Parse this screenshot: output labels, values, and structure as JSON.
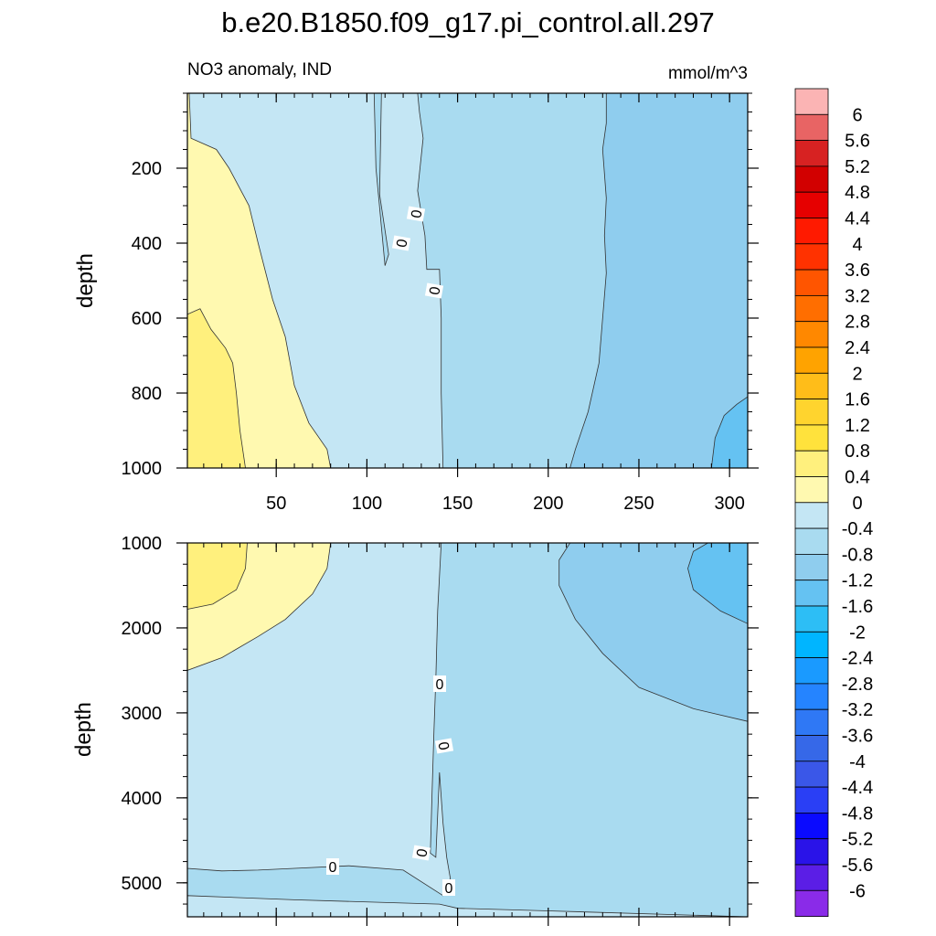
{
  "title": "b.e20.B1850.f09_g17.pi_control.all.297",
  "colors": {
    "contour_line": "#333333",
    "frame": "#000000"
  },
  "chart_data": [
    {
      "type": "heatmap",
      "panel": "upper",
      "subtitle_left": "NO3 anomaly, IND",
      "subtitle_right": "mmol/m^3",
      "ylabel": "depth",
      "xlabel": "",
      "xlim": [
        1,
        310
      ],
      "ylim": [
        1000,
        0
      ],
      "x_ticks": [
        50,
        100,
        150,
        200,
        250,
        300
      ],
      "y_ticks": [
        200,
        400,
        600,
        800,
        1000
      ],
      "contour_labels": [
        "0",
        "0",
        "0"
      ],
      "contour_regions": [
        {
          "level_lo": 0,
          "level_hi": 0.4,
          "description": "positive anomaly from x=1 to ~x=140 at all depths"
        },
        {
          "level_lo": 0.4,
          "level_hi": 0.8,
          "description": "left wedge, x<=80 at 1000 m narrowing to x~10 near surface"
        },
        {
          "level_lo": 0.8,
          "level_hi": 1.2,
          "description": "small patch x<=32 below ~590 m"
        },
        {
          "level_lo": -0.4,
          "level_hi": 0,
          "description": "weak negative anomaly east of x~140"
        },
        {
          "level_lo": -0.8,
          "level_hi": -0.4,
          "description": "negative band x~210-310 widening with depth"
        },
        {
          "level_lo": -1.2,
          "level_hi": -0.8,
          "description": "corner patch x>=290 below ~810 m"
        }
      ]
    },
    {
      "type": "heatmap",
      "panel": "lower",
      "ylabel": "depth",
      "xlabel": "",
      "xlim": [
        1,
        310
      ],
      "ylim": [
        5400,
        1000
      ],
      "x_ticks": [
        50,
        100,
        150,
        200,
        250,
        300
      ],
      "y_ticks": [
        1000,
        2000,
        3000,
        4000,
        5000
      ],
      "contour_labels": [
        "0",
        "0",
        "0",
        "0",
        "0"
      ],
      "contour_regions": [
        {
          "level_lo": 0,
          "level_hi": 0.4,
          "description": "positive anomaly x=1 to ~x=140 from 1000 m to ~4900 m"
        },
        {
          "level_lo": 0.4,
          "level_hi": 0.8,
          "description": "wedge x<=80 near 1000 m thinning to surface at ~2500 m"
        },
        {
          "level_lo": 0.8,
          "level_hi": 1.2,
          "description": "small patch x<=32 from 1000 m to ~1800 m"
        },
        {
          "level_lo": -0.4,
          "level_hi": 0,
          "description": "negative anomaly east of x~140 and thin bottom layer"
        },
        {
          "level_lo": -0.8,
          "level_hi": -0.4,
          "description": "upper-right area x>=205 from 1000 m down to ~3100 m at x=310"
        },
        {
          "level_lo": -1.2,
          "level_hi": -0.8,
          "description": "patch x>=277 between 1000 m and ~1900 m"
        }
      ]
    }
  ],
  "colorbar": {
    "labels": [
      "6",
      "5.6",
      "5.2",
      "4.8",
      "4.4",
      "4",
      "3.6",
      "3.2",
      "2.8",
      "2.4",
      "2",
      "1.6",
      "1.2",
      "0.8",
      "0.4",
      "0",
      "-0.4",
      "-0.8",
      "-1.2",
      "-1.6",
      "-2",
      "-2.4",
      "-2.8",
      "-3.2",
      "-3.6",
      "-4",
      "-4.4",
      "-4.8",
      "-5.2",
      "-5.6",
      "-6"
    ],
    "colors": [
      "#fbb4b4",
      "#e86464",
      "#d72222",
      "#d20000",
      "#e60000",
      "#ff1a00",
      "#ff3200",
      "#ff5500",
      "#ff6e00",
      "#ff8800",
      "#ffa300",
      "#ffbd19",
      "#ffd42e",
      "#ffe23c",
      "#fff07d",
      "#fff9b0",
      "#c4e6f4",
      "#a9dbf0",
      "#8fcdee",
      "#65c2f2",
      "#2dbef5",
      "#00b5ff",
      "#1a9aff",
      "#2584ff",
      "#2f78f5",
      "#3668e8",
      "#3a57e8",
      "#2a3ff5",
      "#0a0aff",
      "#2a13e8",
      "#5b1ee6",
      "#8a2be8"
    ]
  }
}
